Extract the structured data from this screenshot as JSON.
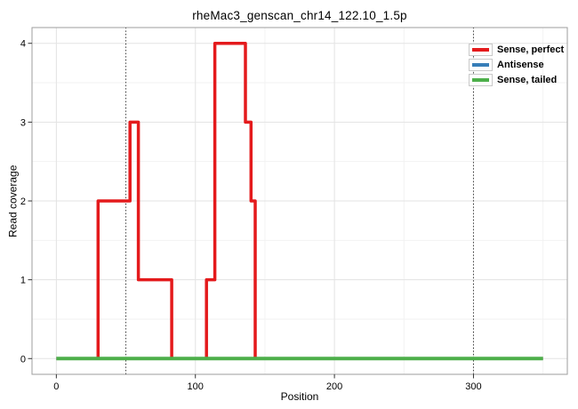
{
  "title": "rheMac3_genscan_chr14_122.10_1.5p",
  "axes": {
    "x_label": "Position",
    "y_label": "Read coverage"
  },
  "legend": {
    "items": [
      {
        "label": "Sense, perfect",
        "color": "#E41A1C"
      },
      {
        "label": "Antisense",
        "color": "#377EB8"
      },
      {
        "label": "Sense, tailed",
        "color": "#4DAF4A"
      }
    ]
  },
  "chart_data": {
    "type": "line",
    "subtype": "step",
    "title": "rheMac3_genscan_chr14_122.10_1.5p",
    "xlabel": "Position",
    "ylabel": "Read coverage",
    "xlim": [
      -17.5,
      367.5
    ],
    "ylim": [
      -0.2,
      4.2
    ],
    "x_ticks": [
      0,
      100,
      200,
      300
    ],
    "y_ticks": [
      0,
      1,
      2,
      3,
      4
    ],
    "x_minor_ticks": [
      50,
      150,
      250,
      350
    ],
    "y_minor_ticks": [
      0.5,
      1.5,
      2.5,
      3.5
    ],
    "dotted_guide_lines_x": [
      50,
      300
    ],
    "grid": true,
    "legend_position": "top-right-inside",
    "series": [
      {
        "name": "Sense, perfect",
        "color": "#E41A1C",
        "stroke_width": 3.5,
        "points": [
          [
            0,
            0
          ],
          [
            30,
            0
          ],
          [
            30,
            2
          ],
          [
            53,
            2
          ],
          [
            53,
            3
          ],
          [
            59,
            3
          ],
          [
            59,
            1
          ],
          [
            83,
            1
          ],
          [
            83,
            0
          ],
          [
            108,
            0
          ],
          [
            108,
            1
          ],
          [
            114,
            1
          ],
          [
            114,
            4
          ],
          [
            136,
            4
          ],
          [
            136,
            3
          ],
          [
            140,
            3
          ],
          [
            140,
            2
          ],
          [
            143,
            2
          ],
          [
            143,
            0
          ],
          [
            350,
            0
          ]
        ]
      },
      {
        "name": "Antisense",
        "color": "#377EB8",
        "stroke_width": 3.5,
        "points": [
          [
            0,
            0
          ],
          [
            350,
            0
          ]
        ]
      },
      {
        "name": "Sense, tailed",
        "color": "#4DAF4A",
        "stroke_width": 4,
        "points": [
          [
            0,
            0
          ],
          [
            350,
            0
          ]
        ]
      }
    ]
  },
  "colors": {
    "grid_major": "#E3E3E3",
    "grid_minor": "#F2F2F2",
    "panel_border": "#9E9E9E",
    "tick": "#333333",
    "guide_line": "#000000"
  }
}
